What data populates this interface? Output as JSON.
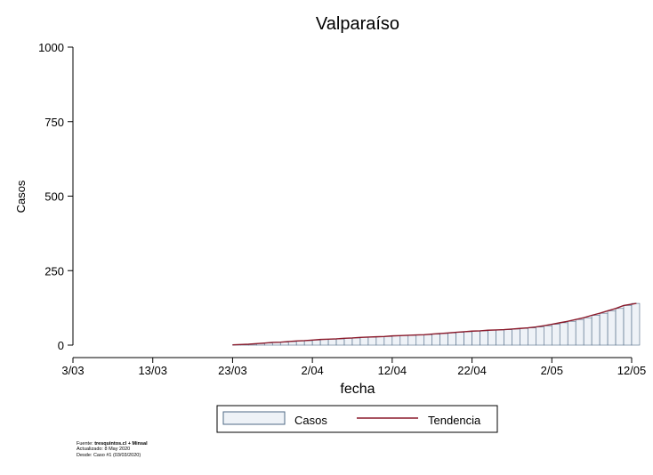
{
  "chart_data": {
    "type": "bar",
    "title": "Valparaíso",
    "xlabel": "fecha",
    "ylabel": "Casos",
    "ylim": [
      0,
      1000
    ],
    "yticks": [
      "0",
      "250",
      "500",
      "750",
      "1000"
    ],
    "xticks": [
      "3/03",
      "13/03",
      "23/03",
      "2/04",
      "12/04",
      "22/04",
      "2/05",
      "12/05"
    ],
    "x_start": "2020-03-03",
    "x_end": "2020-05-12",
    "first_bar_date": "2020-03-23",
    "series": [
      {
        "name": "Casos",
        "type": "bar",
        "values": [
          1,
          2,
          3,
          5,
          7,
          9,
          10,
          12,
          14,
          15,
          17,
          19,
          20,
          21,
          23,
          24,
          26,
          27,
          28,
          29,
          31,
          32,
          33,
          34,
          35,
          37,
          39,
          41,
          43,
          45,
          47,
          48,
          50,
          51,
          52,
          54,
          56,
          58,
          61,
          65,
          70,
          75,
          80,
          86,
          92,
          100,
          107,
          115,
          123,
          133,
          140
        ]
      },
      {
        "name": "Tendencia",
        "type": "line",
        "values": [
          1,
          2,
          3,
          5,
          7,
          9,
          10,
          12,
          14,
          15,
          17,
          19,
          20,
          21,
          23,
          24,
          26,
          27,
          28,
          29,
          31,
          32,
          33,
          34,
          35,
          37,
          39,
          41,
          43,
          45,
          47,
          48,
          50,
          51,
          52,
          54,
          56,
          58,
          61,
          65,
          70,
          75,
          80,
          86,
          92,
          100,
          107,
          115,
          123,
          133,
          140
        ]
      }
    ],
    "legend_position": "bottom",
    "grid": false
  },
  "colors": {
    "bar_fill": "#eef2f7",
    "bar_stroke": "#4f6985",
    "trend": "#8b1a2b",
    "axis": "#000000"
  },
  "source": {
    "line1_prefix": "Fuente: ",
    "line1_bold": "tresquintos.cl + Minsal",
    "line2": "Actualizado: 8 May 2020",
    "line3": "Desde: Caso #1  (03/03/2020)"
  }
}
